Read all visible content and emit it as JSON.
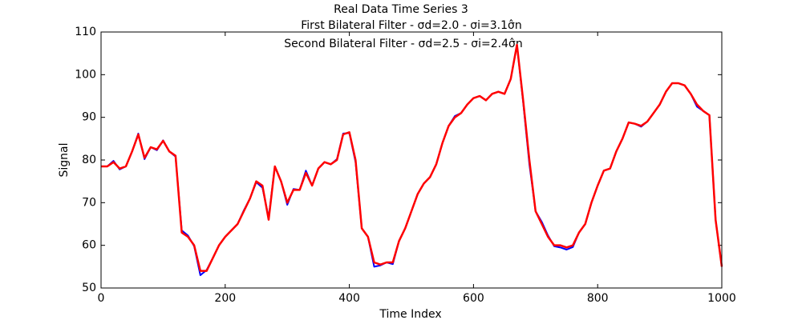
{
  "chart_data": {
    "type": "line",
    "title": "Real Data Time Series 3",
    "subtitle": [
      "First Bilateral Filter - σd=2.0 - σi=3.1σ̂n",
      "Second Bilateral Filter - σd=2.5 - σi=2.4σ̂n"
    ],
    "x_label": "Time Index",
    "y_label": "Signal",
    "xlim": [
      0,
      1000
    ],
    "xticks": [
      0,
      200,
      400,
      600,
      800,
      1000
    ],
    "ylim": [
      50,
      110
    ],
    "yticks": [
      50,
      60,
      70,
      80,
      90,
      100,
      110
    ],
    "x": [
      0,
      10,
      20,
      30,
      40,
      50,
      60,
      70,
      80,
      90,
      100,
      110,
      120,
      130,
      140,
      150,
      160,
      170,
      180,
      190,
      200,
      210,
      220,
      230,
      240,
      250,
      260,
      270,
      280,
      290,
      300,
      310,
      320,
      330,
      340,
      350,
      360,
      370,
      380,
      390,
      400,
      410,
      420,
      430,
      440,
      450,
      460,
      470,
      480,
      490,
      500,
      510,
      520,
      530,
      540,
      550,
      560,
      570,
      580,
      590,
      600,
      610,
      620,
      630,
      640,
      650,
      660,
      670,
      680,
      690,
      700,
      710,
      720,
      730,
      740,
      750,
      760,
      770,
      780,
      790,
      800,
      810,
      820,
      830,
      840,
      850,
      860,
      870,
      880,
      890,
      900,
      910,
      920,
      930,
      940,
      950,
      960,
      970,
      980,
      990,
      1000
    ],
    "series": [
      {
        "color": "#0000ff",
        "values": [
          78.5,
          78.5,
          79.8,
          77.8,
          78.5,
          82,
          86.2,
          80.2,
          83,
          82.3,
          84.6,
          82,
          80.8,
          63.5,
          62.3,
          59.8,
          53,
          54.2,
          57,
          60,
          62,
          63.5,
          65,
          68.2,
          71,
          74.8,
          73.5,
          66.5,
          78.5,
          75,
          69.5,
          73.2,
          73,
          77.5,
          74,
          78,
          79.5,
          79,
          80.2,
          86.2,
          86.3,
          79.5,
          64,
          62,
          55,
          55.3,
          56,
          55.6,
          61,
          64,
          68,
          72,
          74.5,
          76,
          79,
          84,
          88,
          90.3,
          91,
          93,
          94.5,
          95,
          94,
          95.5,
          96,
          95.5,
          99,
          107,
          93.5,
          79,
          68,
          65.5,
          62.3,
          59.8,
          59.5,
          59,
          59.6,
          63,
          65,
          70,
          74,
          77.5,
          78,
          82,
          85,
          88.8,
          88.5,
          87.8,
          89,
          91,
          93,
          96,
          98,
          98,
          97.5,
          95.5,
          92.5,
          91.5,
          90.5,
          66,
          55
        ]
      },
      {
        "color": "#ff0000",
        "values": [
          78.5,
          78.5,
          79.5,
          78,
          78.5,
          82,
          86,
          80.5,
          83,
          82.5,
          84.5,
          82,
          81,
          63,
          62,
          60,
          54,
          54,
          57,
          60,
          62,
          63.5,
          65,
          68,
          71,
          75,
          74,
          66,
          78.5,
          75,
          70,
          73,
          73,
          77,
          74,
          78,
          79.5,
          79,
          80,
          86,
          86.5,
          80,
          64,
          62,
          56,
          55.5,
          56,
          56,
          61,
          64,
          68,
          72,
          74.5,
          76,
          79,
          84,
          88,
          90,
          91,
          93,
          94.5,
          95,
          94,
          95.5,
          96,
          95.5,
          99,
          107,
          94,
          80,
          68,
          65,
          62,
          60,
          60,
          59.5,
          60,
          63,
          65,
          70,
          74,
          77.5,
          78,
          82,
          85,
          88.8,
          88.5,
          88,
          89,
          91,
          93,
          96,
          98,
          98,
          97.5,
          95.5,
          93,
          91.5,
          90.5,
          66,
          55
        ]
      }
    ]
  }
}
